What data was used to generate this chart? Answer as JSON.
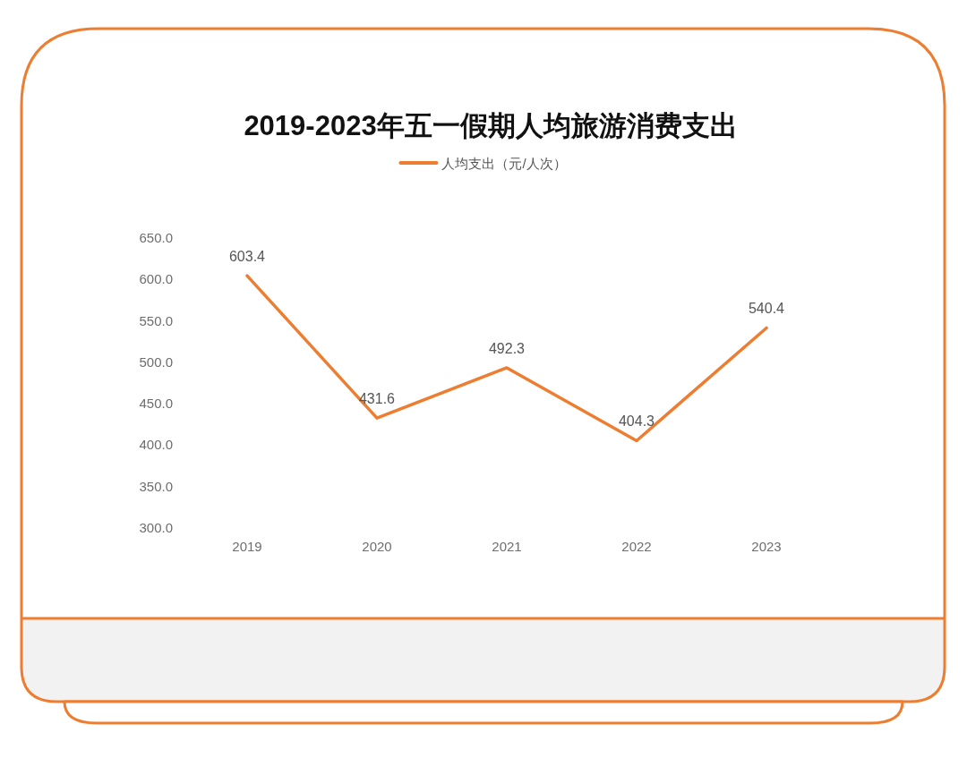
{
  "chart_data": {
    "type": "line",
    "title": "2019-2023年五一假期人均旅游消费支出",
    "categories": [
      "2019",
      "2020",
      "2021",
      "2022",
      "2023"
    ],
    "series": [
      {
        "name": "人均支出（元/人次）",
        "color": "#ed7d31",
        "values": [
          603.4,
          431.6,
          492.3,
          404.3,
          540.4
        ]
      }
    ],
    "ylim": [
      300,
      650
    ],
    "yticks": [
      {
        "value": 300,
        "label": "300.0"
      },
      {
        "value": 350,
        "label": "350.0"
      },
      {
        "value": 400,
        "label": "400.0"
      },
      {
        "value": 450,
        "label": "450.0"
      },
      {
        "value": 500,
        "label": "500.0"
      },
      {
        "value": 550,
        "label": "550.0"
      },
      {
        "value": 600,
        "label": "600.0"
      },
      {
        "value": 650,
        "label": "650.0"
      }
    ],
    "data_labels": true,
    "legend": "top"
  }
}
